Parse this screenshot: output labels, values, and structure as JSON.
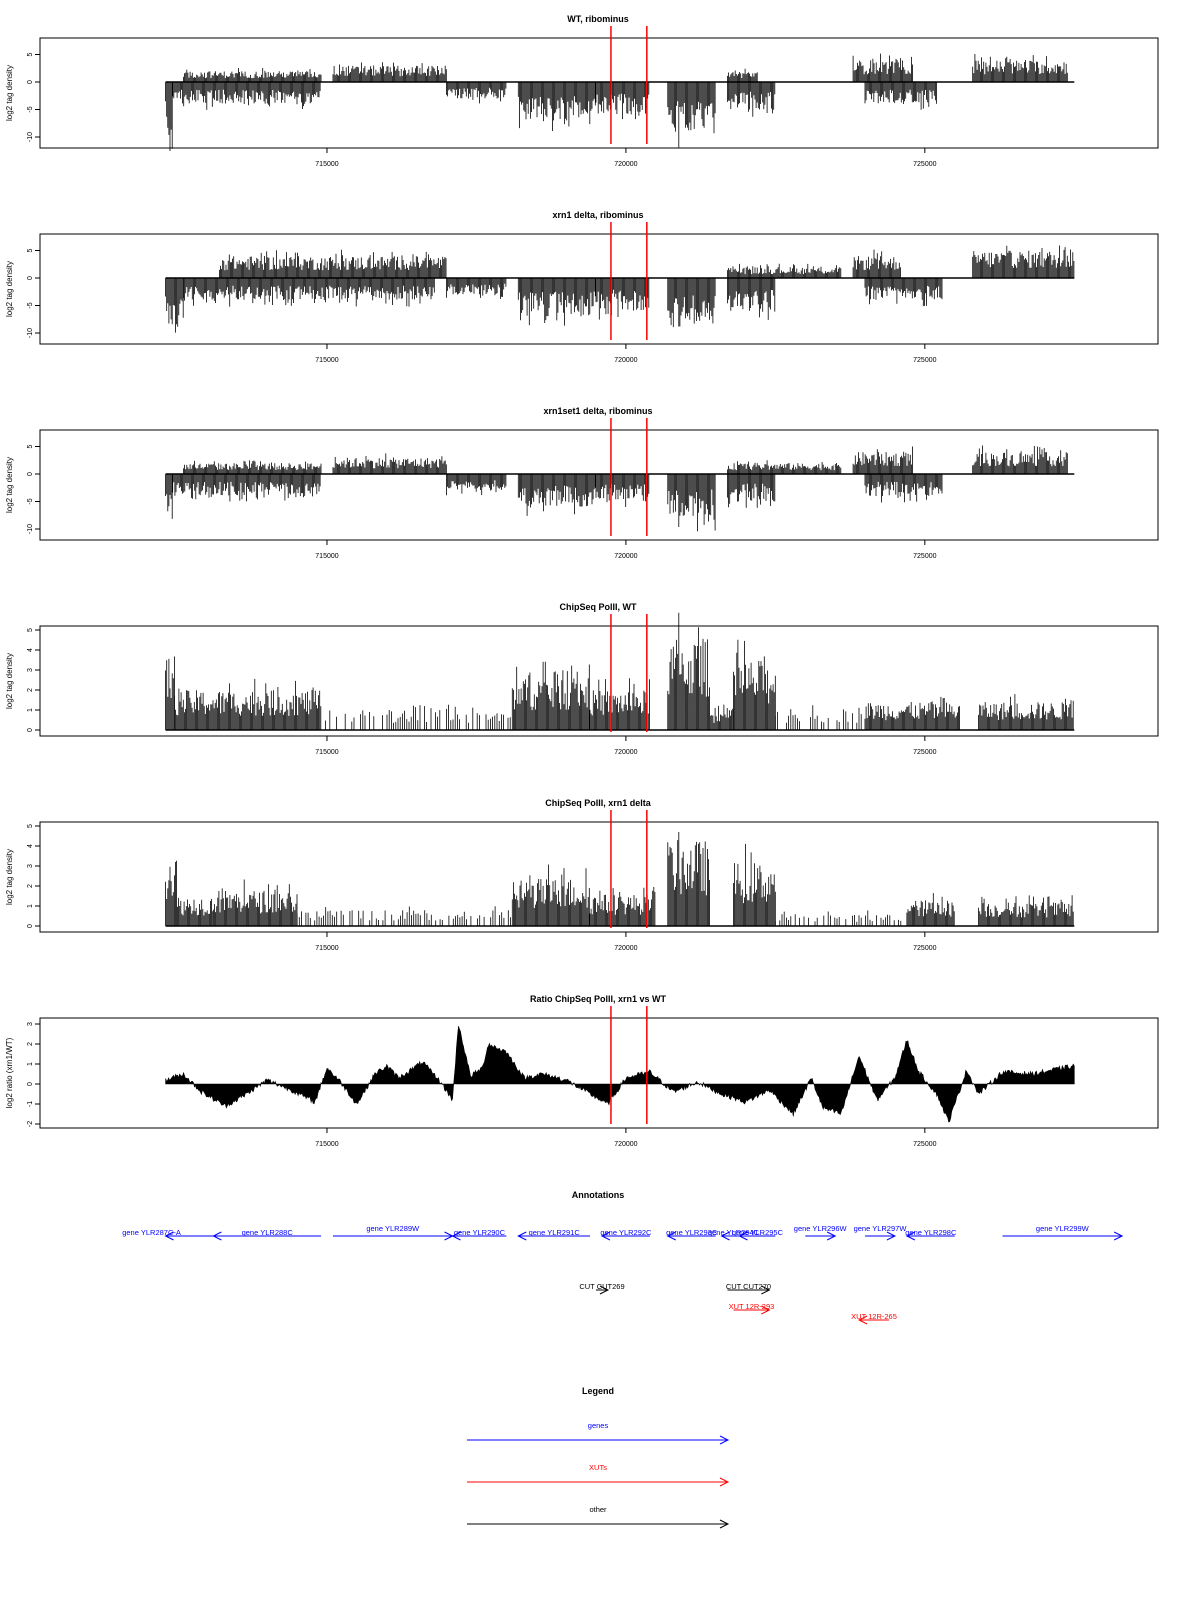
{
  "chart_data": [
    {
      "type": "bar",
      "title": "WT, ribominus",
      "ylabel": "log2 tag density",
      "ylim": [
        -12,
        8
      ],
      "yticks": [
        5,
        0,
        -5,
        -10
      ],
      "xlim": [
        710200,
        728900
      ],
      "xticks": [
        715000,
        720000,
        725000
      ],
      "marker_lines": [
        719750,
        720350
      ],
      "marker_color": "#ff0000",
      "regions": [
        {
          "start": 712300,
          "end": 712420,
          "strand": "minus",
          "amp": 10
        },
        {
          "start": 712420,
          "end": 714900,
          "strand": "minus",
          "amp": 4
        },
        {
          "start": 712600,
          "end": 714900,
          "strand": "plus",
          "amp": 2
        },
        {
          "start": 715100,
          "end": 717000,
          "strand": "plus",
          "amp": 3
        },
        {
          "start": 717000,
          "end": 718000,
          "strand": "minus",
          "amp": 3
        },
        {
          "start": 718200,
          "end": 719500,
          "strand": "minus",
          "amp": 7
        },
        {
          "start": 719500,
          "end": 720400,
          "strand": "minus",
          "amp": 6
        },
        {
          "start": 720700,
          "end": 721500,
          "strand": "minus",
          "amp": 10
        },
        {
          "start": 721700,
          "end": 722500,
          "strand": "minus",
          "amp": 5
        },
        {
          "start": 721700,
          "end": 722200,
          "strand": "plus",
          "amp": 2
        },
        {
          "start": 723800,
          "end": 724800,
          "strand": "plus",
          "amp": 4
        },
        {
          "start": 724000,
          "end": 725200,
          "strand": "minus",
          "amp": 4
        },
        {
          "start": 725800,
          "end": 727400,
          "strand": "plus",
          "amp": 4
        }
      ]
    },
    {
      "type": "bar",
      "title": "xrn1 delta, ribominus",
      "ylabel": "log2 tag density",
      "ylim": [
        -12,
        8
      ],
      "yticks": [
        5,
        0,
        -5,
        -10
      ],
      "xlim": [
        710200,
        728900
      ],
      "xticks": [
        715000,
        720000,
        725000
      ],
      "marker_lines": [
        719750,
        720350
      ],
      "marker_color": "#ff0000",
      "regions": [
        {
          "start": 712300,
          "end": 712600,
          "strand": "minus",
          "amp": 9
        },
        {
          "start": 712600,
          "end": 716800,
          "strand": "minus",
          "amp": 4
        },
        {
          "start": 713200,
          "end": 717000,
          "strand": "plus",
          "amp": 4
        },
        {
          "start": 717000,
          "end": 718000,
          "strand": "minus",
          "amp": 3
        },
        {
          "start": 718200,
          "end": 719500,
          "strand": "minus",
          "amp": 7
        },
        {
          "start": 719500,
          "end": 720400,
          "strand": "minus",
          "amp": 6
        },
        {
          "start": 720700,
          "end": 721500,
          "strand": "minus",
          "amp": 9
        },
        {
          "start": 721700,
          "end": 722500,
          "strand": "minus",
          "amp": 6
        },
        {
          "start": 721700,
          "end": 723600,
          "strand": "plus",
          "amp": 2
        },
        {
          "start": 723800,
          "end": 724600,
          "strand": "plus",
          "amp": 4
        },
        {
          "start": 724000,
          "end": 725300,
          "strand": "minus",
          "amp": 4
        },
        {
          "start": 725800,
          "end": 727500,
          "strand": "plus",
          "amp": 5
        }
      ]
    },
    {
      "type": "bar",
      "title": "xrn1set1 delta, ribominus",
      "ylabel": "log2 tag density",
      "ylim": [
        -12,
        8
      ],
      "yticks": [
        5,
        0,
        -5,
        -10
      ],
      "xlim": [
        710200,
        728900
      ],
      "xticks": [
        715000,
        720000,
        725000
      ],
      "marker_lines": [
        719750,
        720350
      ],
      "marker_color": "#ff0000",
      "regions": [
        {
          "start": 712300,
          "end": 712420,
          "strand": "minus",
          "amp": 9
        },
        {
          "start": 712420,
          "end": 714900,
          "strand": "minus",
          "amp": 4
        },
        {
          "start": 712600,
          "end": 714900,
          "strand": "plus",
          "amp": 2
        },
        {
          "start": 715100,
          "end": 717000,
          "strand": "plus",
          "amp": 3
        },
        {
          "start": 717000,
          "end": 718000,
          "strand": "minus",
          "amp": 3
        },
        {
          "start": 718200,
          "end": 719500,
          "strand": "minus",
          "amp": 6
        },
        {
          "start": 719500,
          "end": 720400,
          "strand": "minus",
          "amp": 5
        },
        {
          "start": 720700,
          "end": 721500,
          "strand": "minus",
          "amp": 8
        },
        {
          "start": 721700,
          "end": 722500,
          "strand": "minus",
          "amp": 5
        },
        {
          "start": 721700,
          "end": 723600,
          "strand": "plus",
          "amp": 2
        },
        {
          "start": 723800,
          "end": 724800,
          "strand": "plus",
          "amp": 4
        },
        {
          "start": 724000,
          "end": 725300,
          "strand": "minus",
          "amp": 4
        },
        {
          "start": 725800,
          "end": 727400,
          "strand": "plus",
          "amp": 4
        }
      ]
    },
    {
      "type": "bar",
      "title": "ChipSeq PolII, WT",
      "ylabel": "log2 tag density",
      "ylim": [
        -0.3,
        5.2
      ],
      "yticks": [
        0,
        1,
        2,
        3,
        4,
        5
      ],
      "xlim": [
        710200,
        728900
      ],
      "xticks": [
        715000,
        720000,
        725000
      ],
      "marker_lines": [
        719750,
        720350
      ],
      "marker_color": "#ff0000",
      "regions": [
        {
          "start": 712300,
          "end": 712450,
          "strand": "plus",
          "amp": 3.8
        },
        {
          "start": 712450,
          "end": 714900,
          "strand": "plus",
          "amp": 2
        },
        {
          "start": 714900,
          "end": 718100,
          "strand": "plus",
          "amp": 1,
          "sparse": true
        },
        {
          "start": 718100,
          "end": 719400,
          "strand": "plus",
          "amp": 2.8
        },
        {
          "start": 719400,
          "end": 720400,
          "strand": "plus",
          "amp": 2
        },
        {
          "start": 720700,
          "end": 721400,
          "strand": "plus",
          "amp": 4.6
        },
        {
          "start": 721400,
          "end": 721800,
          "strand": "plus",
          "amp": 1
        },
        {
          "start": 721800,
          "end": 722500,
          "strand": "plus",
          "amp": 3.5
        },
        {
          "start": 722500,
          "end": 724000,
          "strand": "plus",
          "amp": 1,
          "sparse": true
        },
        {
          "start": 724000,
          "end": 725600,
          "strand": "plus",
          "amp": 1.4
        },
        {
          "start": 725900,
          "end": 727500,
          "strand": "plus",
          "amp": 1.4
        }
      ]
    },
    {
      "type": "bar",
      "title": "ChipSeq PolII, xrn1 delta",
      "ylabel": "log2 tag density",
      "ylim": [
        -0.3,
        5.2
      ],
      "yticks": [
        0,
        1,
        2,
        3,
        4,
        5
      ],
      "xlim": [
        710200,
        728900
      ],
      "xticks": [
        715000,
        720000,
        725000
      ],
      "marker_lines": [
        719750,
        720350
      ],
      "marker_color": "#ff0000",
      "regions": [
        {
          "start": 712300,
          "end": 712500,
          "strand": "plus",
          "amp": 3.8
        },
        {
          "start": 712500,
          "end": 713100,
          "strand": "plus",
          "amp": 1.5
        },
        {
          "start": 713100,
          "end": 714500,
          "strand": "plus",
          "amp": 1.8
        },
        {
          "start": 714500,
          "end": 718100,
          "strand": "plus",
          "amp": 0.8,
          "sparse": true
        },
        {
          "start": 718100,
          "end": 719400,
          "strand": "plus",
          "amp": 2.4
        },
        {
          "start": 719400,
          "end": 720500,
          "strand": "plus",
          "amp": 1.6
        },
        {
          "start": 720700,
          "end": 721400,
          "strand": "plus",
          "amp": 4.3
        },
        {
          "start": 721800,
          "end": 722500,
          "strand": "plus",
          "amp": 3.2
        },
        {
          "start": 722500,
          "end": 724700,
          "strand": "plus",
          "amp": 0.6,
          "sparse": true
        },
        {
          "start": 724700,
          "end": 725500,
          "strand": "plus",
          "amp": 1.3
        },
        {
          "start": 725900,
          "end": 727500,
          "strand": "plus",
          "amp": 1.2
        }
      ]
    },
    {
      "type": "area",
      "title": "Ratio ChipSeq PolII, xrn1 vs WT",
      "ylabel": "log2 ratio (xrn1/WT)",
      "ylim": [
        -2.2,
        3.3
      ],
      "yticks": [
        3,
        2,
        1,
        0,
        -1,
        -2
      ],
      "xlim": [
        710200,
        728900
      ],
      "xticks": [
        715000,
        720000,
        725000
      ],
      "marker_lines": [
        719750,
        720350
      ],
      "marker_color": "#ff0000",
      "x": [
        712300,
        712600,
        712900,
        713300,
        713600,
        714000,
        714400,
        714800,
        715000,
        715200,
        715500,
        715800,
        716000,
        716200,
        716600,
        716900,
        717100,
        717200,
        717400,
        717600,
        717700,
        718000,
        718300,
        718600,
        719000,
        719400,
        719700,
        720000,
        720400,
        720800,
        721200,
        721600,
        722000,
        722400,
        722800,
        723100,
        723300,
        723600,
        723900,
        724200,
        724500,
        724700,
        724900,
        725200,
        725400,
        725700,
        725900,
        726300,
        726800,
        727300,
        727500
      ],
      "y": [
        0.2,
        0.5,
        -0.4,
        -1.1,
        -0.6,
        0.2,
        -0.3,
        -0.9,
        0.8,
        0.2,
        -1.0,
        0.5,
        0.9,
        0.3,
        1.1,
        0.1,
        -0.8,
        3.0,
        0.4,
        0.8,
        2.0,
        1.6,
        0.3,
        0.5,
        0.2,
        -0.5,
        -1.0,
        0.3,
        0.6,
        -0.4,
        0.1,
        -0.5,
        -0.9,
        -0.3,
        -1.5,
        0.3,
        -1.2,
        -1.5,
        1.4,
        -0.8,
        0.3,
        2.2,
        0.6,
        -0.5,
        -1.9,
        0.7,
        -0.5,
        0.6,
        0.5,
        0.8,
        0.9
      ]
    }
  ],
  "annotations": {
    "title": "Annotations",
    "features": [
      {
        "label": "gene YLR287C-A",
        "kind": "gene",
        "strand": "minus",
        "start": 712300,
        "end": 713100,
        "row": 0,
        "label_anchor": "left-out"
      },
      {
        "label": "gene YLR288C",
        "kind": "gene",
        "strand": "minus",
        "start": 713100,
        "end": 714900,
        "row": 0
      },
      {
        "label": "gene YLR289W",
        "kind": "gene",
        "strand": "plus",
        "start": 715100,
        "end": 717100,
        "row": 0,
        "label_above": true
      },
      {
        "label": "gene YLR290C",
        "kind": "gene",
        "strand": "minus",
        "start": 717100,
        "end": 718000,
        "row": 0
      },
      {
        "label": "gene YLR291C",
        "kind": "gene",
        "strand": "minus",
        "start": 718200,
        "end": 719400,
        "row": 0
      },
      {
        "label": "gene YLR292C",
        "kind": "gene",
        "strand": "minus",
        "start": 719600,
        "end": 720400,
        "row": 0
      },
      {
        "label": "gene YLR293C",
        "kind": "gene",
        "strand": "minus",
        "start": 720700,
        "end": 721500,
        "row": 0
      },
      {
        "label": "gene YLR294C",
        "kind": "gene",
        "strand": "minus",
        "start": 721600,
        "end": 722000,
        "row": 0
      },
      {
        "label": "gene YLR295C",
        "kind": "gene",
        "strand": "minus",
        "start": 721900,
        "end": 722500,
        "row": 0
      },
      {
        "label": "gene YLR296W",
        "kind": "gene",
        "strand": "plus",
        "start": 723000,
        "end": 723500,
        "row": 0,
        "label_above": true
      },
      {
        "label": "gene YLR297W",
        "kind": "gene",
        "strand": "plus",
        "start": 724000,
        "end": 724500,
        "row": 0,
        "label_above": true
      },
      {
        "label": "gene YLR298C",
        "kind": "gene",
        "strand": "minus",
        "start": 724700,
        "end": 725500,
        "row": 0
      },
      {
        "label": "gene YLR299W",
        "kind": "gene",
        "strand": "plus",
        "start": 726300,
        "end": 728300,
        "row": 0,
        "label_above": true
      },
      {
        "label": "CUT CUT269",
        "kind": "other",
        "strand": "plus",
        "start": 719500,
        "end": 719700,
        "row": 1
      },
      {
        "label": "CUT CUT270",
        "kind": "other",
        "strand": "plus",
        "start": 721700,
        "end": 722400,
        "row": 1
      },
      {
        "label": "XUT 12R-293",
        "kind": "xut",
        "strand": "plus",
        "start": 721800,
        "end": 722400,
        "row": 2
      },
      {
        "label": "XUT 12R-265",
        "kind": "xut",
        "strand": "minus",
        "start": 723900,
        "end": 724400,
        "row": 2,
        "row_offset": 10
      }
    ]
  },
  "legend": {
    "title": "Legend",
    "items": [
      {
        "label": "genes",
        "color": "#0000ff"
      },
      {
        "label": "XUTs",
        "color": "#ff0000"
      },
      {
        "label": "other",
        "color": "#000000"
      }
    ]
  },
  "colors": {
    "gene": "#0000ff",
    "xut": "#ff0000",
    "other": "#000000",
    "marker": "#ff0000",
    "signal": "#000000",
    "axis": "#000000"
  }
}
